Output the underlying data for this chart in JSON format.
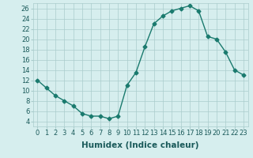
{
  "x": [
    0,
    1,
    2,
    3,
    4,
    5,
    6,
    7,
    8,
    9,
    10,
    11,
    12,
    13,
    14,
    15,
    16,
    17,
    18,
    19,
    20,
    21,
    22,
    23
  ],
  "y": [
    12,
    10.5,
    9,
    8,
    7,
    5.5,
    5,
    5,
    4.5,
    5,
    11,
    13.5,
    18.5,
    23,
    24.5,
    25.5,
    26,
    26.5,
    25.5,
    20.5,
    20,
    17.5,
    14,
    13
  ],
  "line_color": "#1a7a6e",
  "marker": "D",
  "marker_size": 2.5,
  "bg_color": "#d6eeee",
  "grid_color": "#aacccc",
  "xlabel": "Humidex (Indice chaleur)",
  "xlim": [
    -0.5,
    23.5
  ],
  "ylim": [
    3,
    27
  ],
  "yticks": [
    4,
    6,
    8,
    10,
    12,
    14,
    16,
    18,
    20,
    22,
    24,
    26
  ],
  "xticks": [
    0,
    1,
    2,
    3,
    4,
    5,
    6,
    7,
    8,
    9,
    10,
    11,
    12,
    13,
    14,
    15,
    16,
    17,
    18,
    19,
    20,
    21,
    22,
    23
  ],
  "xtick_labels": [
    "0",
    "1",
    "2",
    "3",
    "4",
    "5",
    "6",
    "7",
    "8",
    "9",
    "10",
    "11",
    "12",
    "13",
    "14",
    "15",
    "16",
    "17",
    "18",
    "19",
    "20",
    "21",
    "22",
    "23"
  ],
  "tick_fontsize": 6,
  "xlabel_fontsize": 7.5,
  "linewidth": 1.0
}
